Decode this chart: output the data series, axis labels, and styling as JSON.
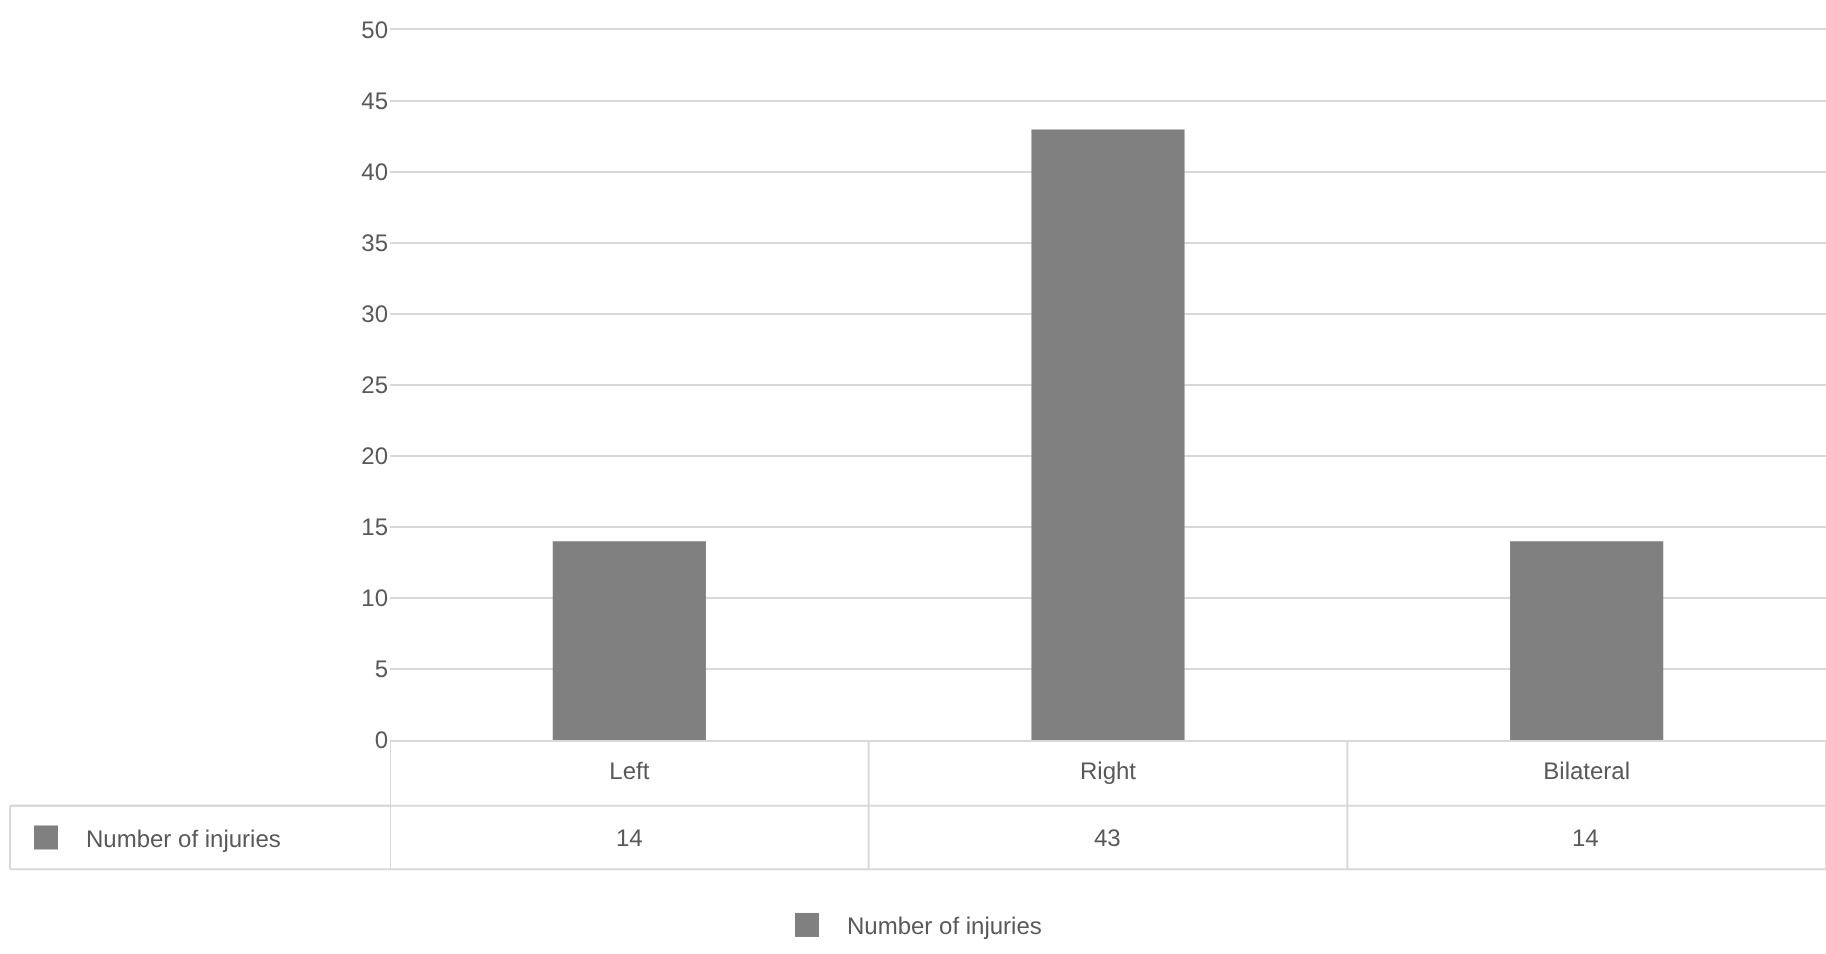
{
  "chart_data": {
    "type": "bar",
    "categories": [
      "Left",
      "Right",
      "Bilateral"
    ],
    "series": [
      {
        "name": "Number of injuries",
        "color": "#808080",
        "values": [
          14,
          43,
          14
        ]
      }
    ],
    "ylim": [
      0,
      50
    ],
    "yticks": [
      0,
      5,
      10,
      15,
      20,
      25,
      30,
      35,
      40,
      45,
      50
    ],
    "grid": "y",
    "legend": "bottom",
    "data_labels": true
  }
}
